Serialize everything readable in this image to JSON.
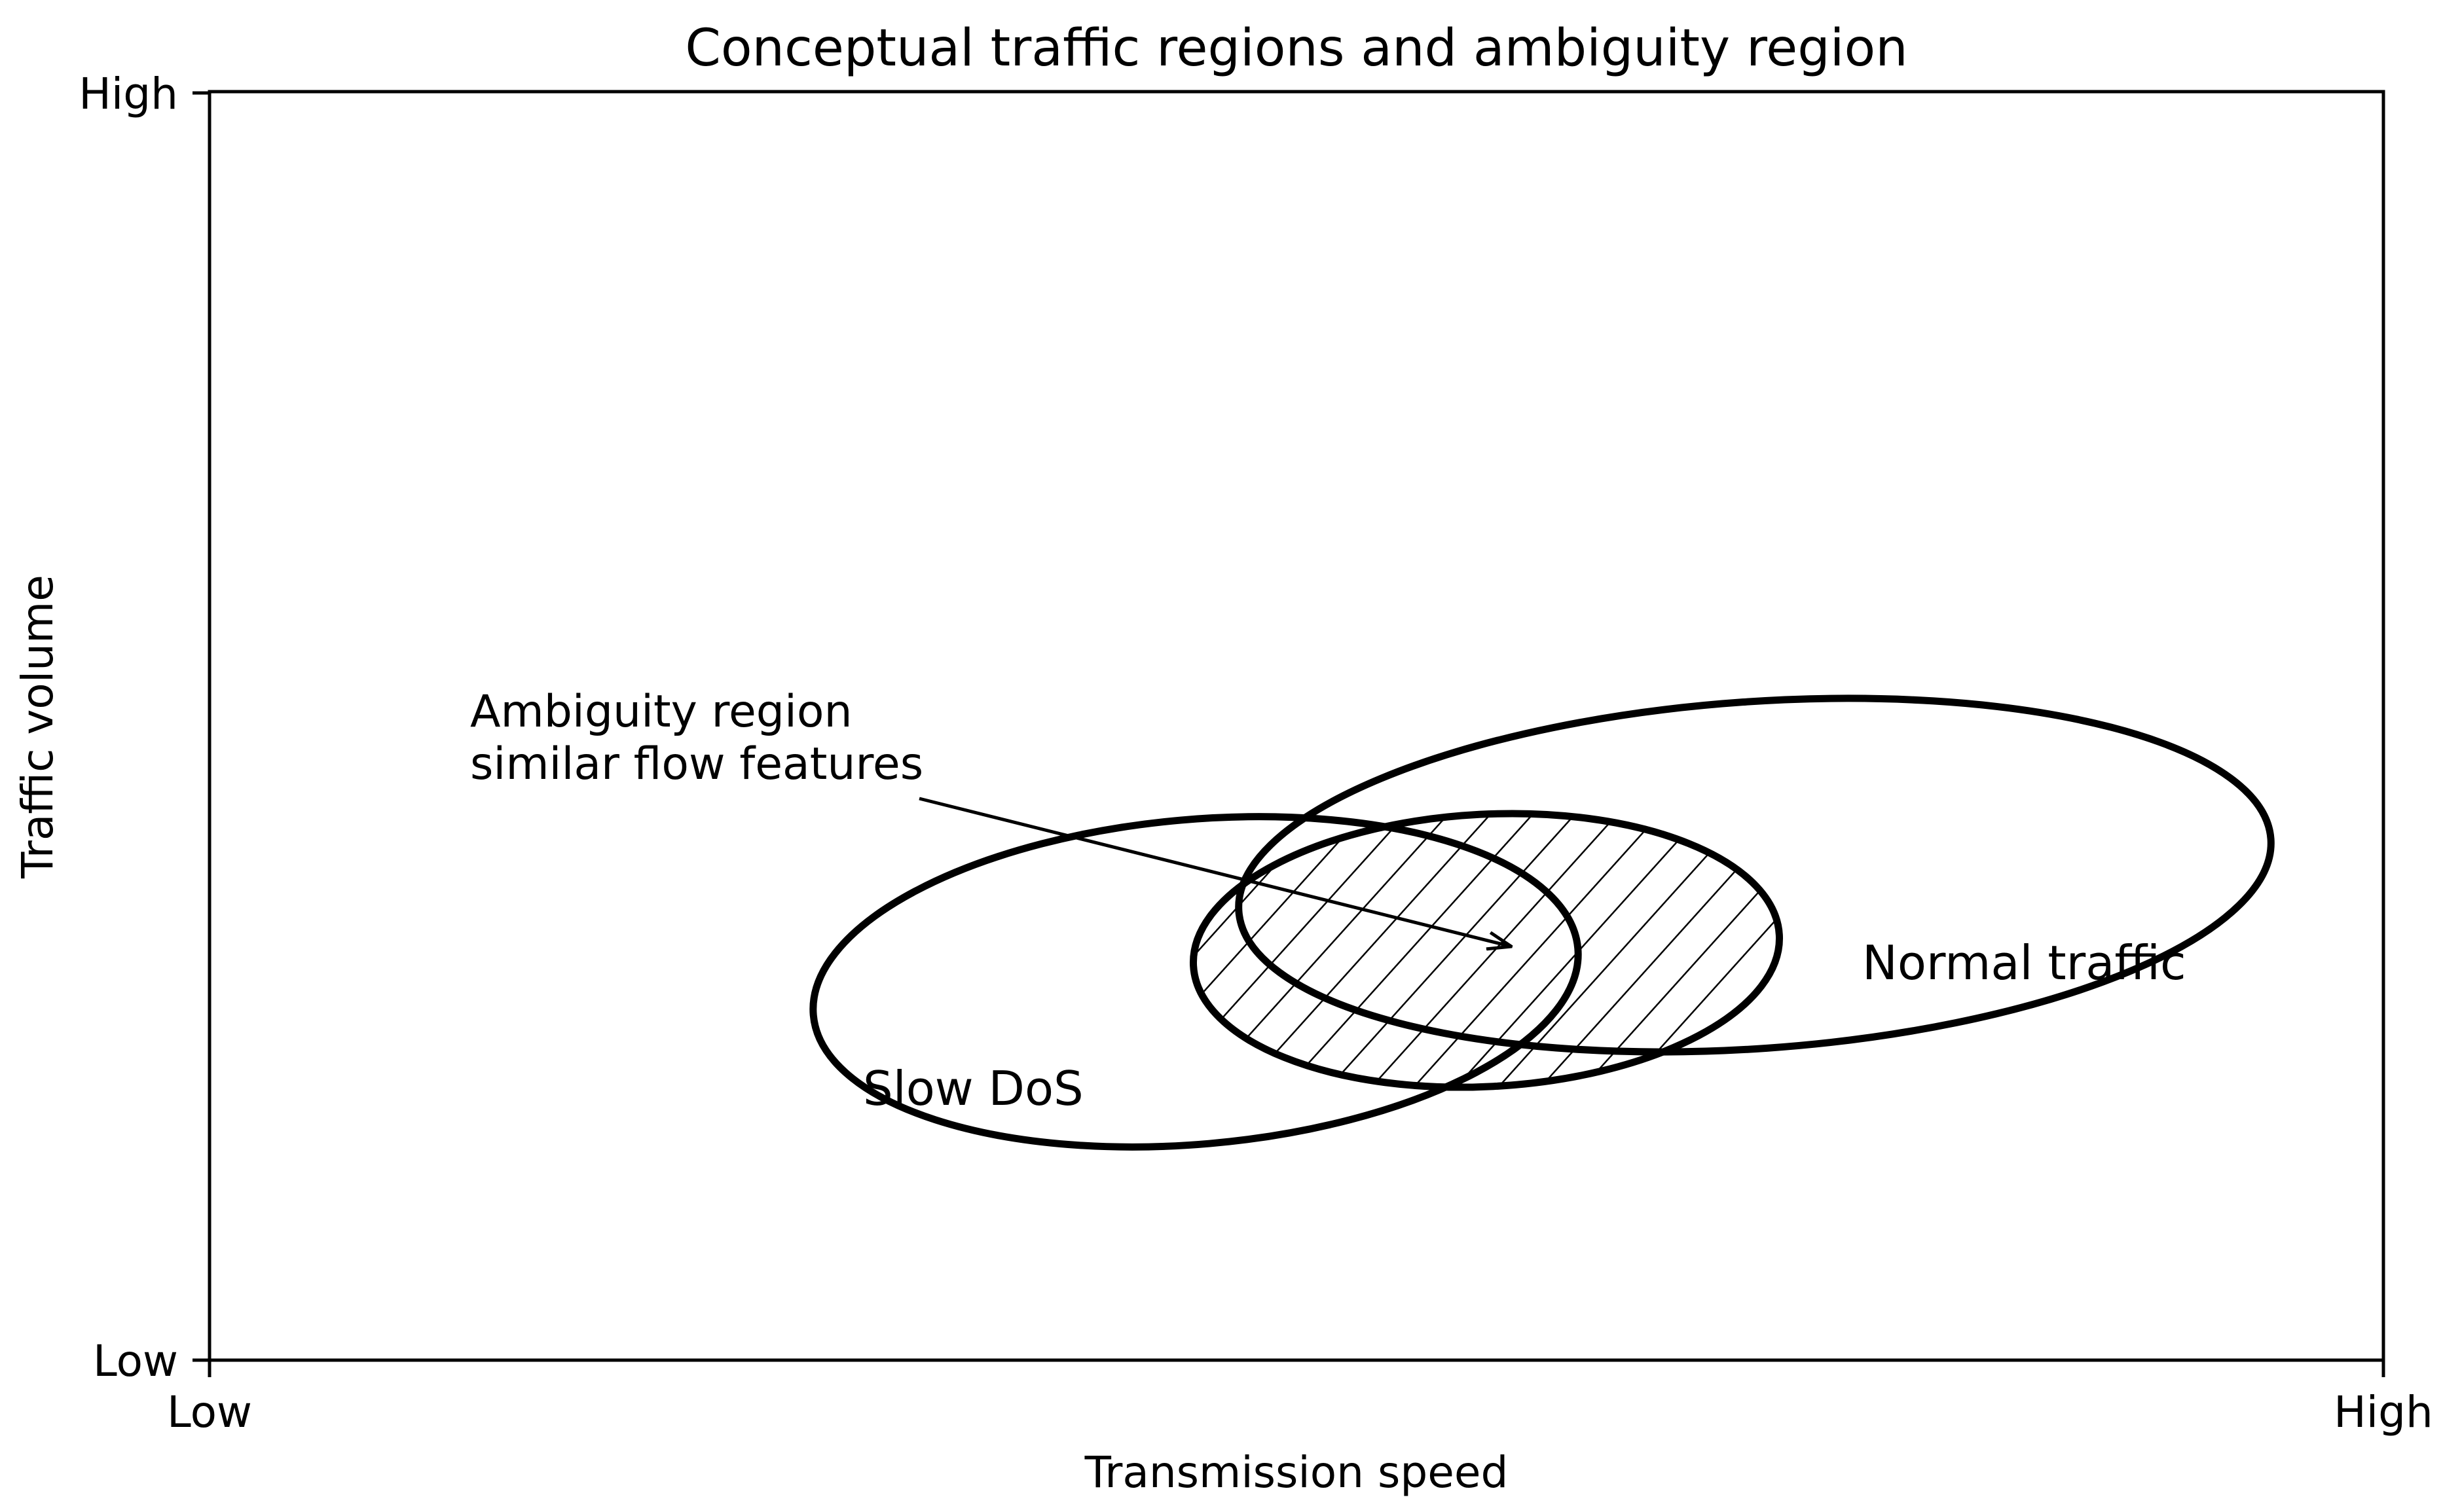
{
  "title": "Conceptual traffic regions and ambiguity region",
  "x_axis": {
    "label": "Transmission speed",
    "ticks": [
      "Low",
      "High"
    ]
  },
  "y_axis": {
    "label": "Traffic volume",
    "ticks": [
      "Low",
      "High"
    ]
  },
  "regions": [
    {
      "id": "slow-dos",
      "label": "Slow DoS"
    },
    {
      "id": "normal-traffic",
      "label": "Normal traffic"
    },
    {
      "id": "ambiguity",
      "label": "",
      "fill": "hatched"
    }
  ],
  "annotation": {
    "lines": [
      "Ambiguity region",
      "similar flow features"
    ]
  },
  "colors": {
    "stroke": "#000000",
    "background": "#ffffff"
  }
}
